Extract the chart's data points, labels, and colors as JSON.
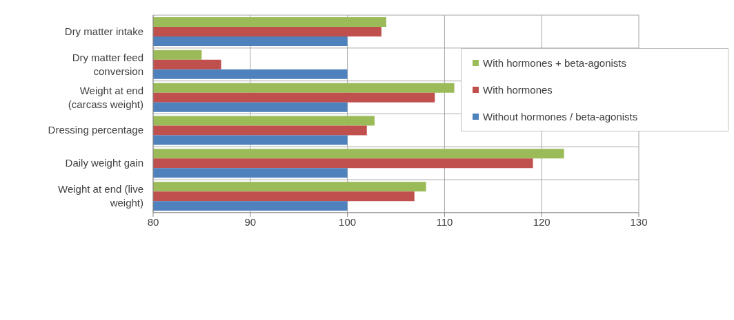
{
  "chart_data": {
    "type": "bar",
    "orientation": "horizontal",
    "categories": [
      "Dry matter intake",
      "Dry matter feed conversion",
      "Weight at end (carcass weight)",
      "Dressing percentage",
      "Daily weight gain",
      "Weight at end (live weight)"
    ],
    "series": [
      {
        "name": "With hormones + beta-agonists",
        "color": "#9bbb59",
        "values": [
          104,
          85,
          111,
          102.8,
          122.3,
          108.1
        ]
      },
      {
        "name": "With hormones",
        "color": "#c0504d",
        "values": [
          103.5,
          87,
          109,
          102,
          119.1,
          106.9
        ]
      },
      {
        "name": "Without hormones / beta-agonists",
        "color": "#4f81bd",
        "values": [
          100,
          100,
          100,
          100,
          100,
          100
        ]
      }
    ],
    "xlim": [
      80,
      130
    ],
    "xticks": [
      80,
      90,
      100,
      110,
      120,
      130
    ],
    "grid": true,
    "legend": "top right"
  }
}
